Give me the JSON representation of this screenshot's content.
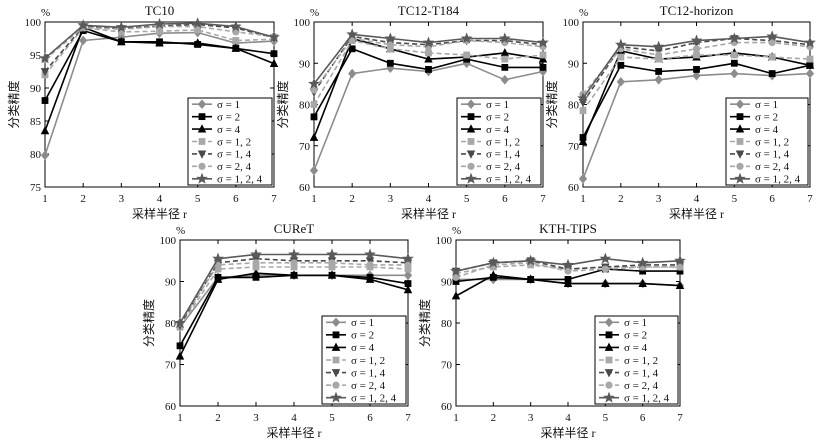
{
  "figure": {
    "x_axis_label": "采样半径 r",
    "y_axis_label": "分类精度",
    "y_unit": "%"
  },
  "legend": [
    "σ = 1",
    "σ = 2",
    "σ = 4",
    "σ = 1, 2",
    "σ = 1, 4",
    "σ = 2, 4",
    "σ = 1, 2, 4"
  ],
  "styles": [
    {
      "color": "#8c8c8c",
      "dash": "",
      "marker": "diamond"
    },
    {
      "color": "#000000",
      "dash": "",
      "marker": "square"
    },
    {
      "color": "#000000",
      "dash": "",
      "marker": "triangle-up"
    },
    {
      "color": "#a8a8a8",
      "dash": "5,3",
      "marker": "square"
    },
    {
      "color": "#4a4a4a",
      "dash": "5,3",
      "marker": "triangle-down"
    },
    {
      "color": "#a8a8a8",
      "dash": "5,3",
      "marker": "circle"
    },
    {
      "color": "#5a5a5a",
      "dash": "",
      "marker": "star"
    }
  ],
  "chart_data": [
    {
      "type": "line",
      "title": "TC10",
      "x": [
        1,
        2,
        3,
        4,
        5,
        6,
        7
      ],
      "ylim": [
        75,
        100
      ],
      "yticks": [
        75,
        80,
        85,
        90,
        95,
        100
      ],
      "xlabel": "采样半径 r",
      "ylabel": "分类精度",
      "grid": false,
      "legend_placement": "bottom-right",
      "series": [
        {
          "name": "σ = 1",
          "values": [
            79.8,
            97.2,
            97.7,
            98.3,
            98.4,
            96.8,
            97.1
          ]
        },
        {
          "name": "σ = 2",
          "values": [
            88.1,
            98.7,
            97.0,
            97.0,
            96.6,
            96.0,
            95.2
          ]
        },
        {
          "name": "σ = 4",
          "values": [
            83.5,
            99.2,
            97.0,
            96.8,
            96.8,
            96.0,
            93.7
          ]
        },
        {
          "name": "σ = 1, 2",
          "values": [
            92.0,
            99.1,
            98.5,
            98.6,
            98.8,
            97.2,
            97.4
          ]
        },
        {
          "name": "σ = 1, 4",
          "values": [
            92.5,
            99.3,
            99.0,
            99.4,
            99.6,
            99.1,
            97.6
          ]
        },
        {
          "name": "σ = 2, 4",
          "values": [
            94.3,
            99.2,
            98.9,
            99.3,
            99.3,
            98.5,
            97.8
          ]
        },
        {
          "name": "σ = 1, 2, 4",
          "values": [
            94.5,
            99.5,
            99.2,
            99.7,
            99.8,
            99.3,
            97.7
          ]
        }
      ]
    },
    {
      "type": "line",
      "title": "TC12-T184",
      "x": [
        1,
        2,
        3,
        4,
        5,
        6,
        7
      ],
      "ylim": [
        60,
        100
      ],
      "yticks": [
        60,
        70,
        80,
        90,
        100
      ],
      "xlabel": "采样半径 r",
      "ylabel": "分类精度",
      "grid": false,
      "legend_placement": "bottom-right",
      "series": [
        {
          "name": "σ = 1",
          "values": [
            64.0,
            87.5,
            88.8,
            88.0,
            90.0,
            86.0,
            88.0
          ]
        },
        {
          "name": "σ = 2",
          "values": [
            77.0,
            93.5,
            90.0,
            88.5,
            91.0,
            89.0,
            89.0
          ]
        },
        {
          "name": "σ = 4",
          "values": [
            72.0,
            96.0,
            93.5,
            91.0,
            91.5,
            92.5,
            91.0
          ]
        },
        {
          "name": "σ = 1, 2",
          "values": [
            80.0,
            95.5,
            93.5,
            92.5,
            92.0,
            91.0,
            92.0
          ]
        },
        {
          "name": "σ = 1, 4",
          "values": [
            83.0,
            96.5,
            95.0,
            94.5,
            95.5,
            95.5,
            94.5
          ]
        },
        {
          "name": "σ = 2, 4",
          "values": [
            83.5,
            96.0,
            94.5,
            94.0,
            95.5,
            95.0,
            94.0
          ]
        },
        {
          "name": "σ = 1, 2, 4",
          "values": [
            85.0,
            97.0,
            96.0,
            95.0,
            96.0,
            96.0,
            95.0
          ]
        }
      ]
    },
    {
      "type": "line",
      "title": "TC12-horizon",
      "x": [
        1,
        2,
        3,
        4,
        5,
        6,
        7
      ],
      "ylim": [
        60,
        100
      ],
      "yticks": [
        60,
        70,
        80,
        90,
        100
      ],
      "xlabel": "采样半径 r",
      "ylabel": "分类精度",
      "grid": false,
      "legend_placement": "bottom-right",
      "series": [
        {
          "name": "σ = 1",
          "values": [
            62.0,
            85.5,
            86.0,
            87.0,
            87.5,
            87.0,
            87.5
          ]
        },
        {
          "name": "σ = 2",
          "values": [
            72.0,
            89.5,
            88.0,
            88.5,
            90.0,
            87.5,
            89.5
          ]
        },
        {
          "name": "σ = 4",
          "values": [
            71.0,
            93.0,
            91.0,
            91.5,
            92.5,
            91.5,
            89.5
          ]
        },
        {
          "name": "σ = 1, 2",
          "values": [
            78.5,
            91.5,
            91.0,
            92.0,
            92.0,
            91.5,
            91.0
          ]
        },
        {
          "name": "σ = 1, 4",
          "values": [
            80.5,
            94.0,
            93.0,
            95.0,
            96.0,
            95.5,
            94.5
          ]
        },
        {
          "name": "σ = 2, 4",
          "values": [
            82.5,
            93.5,
            92.0,
            93.5,
            95.0,
            95.0,
            94.0
          ]
        },
        {
          "name": "σ = 1, 2, 4",
          "values": [
            81.5,
            94.5,
            94.0,
            95.5,
            96.0,
            96.5,
            95.0
          ]
        }
      ]
    },
    {
      "type": "line",
      "title": "CUReT",
      "x": [
        1,
        2,
        3,
        4,
        5,
        6,
        7
      ],
      "ylim": [
        60,
        100
      ],
      "yticks": [
        60,
        70,
        80,
        90,
        100
      ],
      "xlabel": "采样半径 r",
      "ylabel": "分类精度",
      "grid": false,
      "legend_placement": "bottom-right",
      "series": [
        {
          "name": "σ = 1",
          "values": [
            79.0,
            91.0,
            91.5,
            91.5,
            91.5,
            91.5,
            91.5
          ]
        },
        {
          "name": "σ = 2",
          "values": [
            74.5,
            91.0,
            91.0,
            91.5,
            91.5,
            91.0,
            89.5
          ]
        },
        {
          "name": "σ = 4",
          "values": [
            72.0,
            90.5,
            92.0,
            91.5,
            91.5,
            90.5,
            88.0
          ]
        },
        {
          "name": "σ = 1, 2",
          "values": [
            79.0,
            93.0,
            93.5,
            93.5,
            93.5,
            93.5,
            93.0
          ]
        },
        {
          "name": "σ = 1, 4",
          "values": [
            79.5,
            94.5,
            95.5,
            95.0,
            95.0,
            95.0,
            94.5
          ]
        },
        {
          "name": "σ = 2, 4",
          "values": [
            80.0,
            94.0,
            94.5,
            94.5,
            94.5,
            94.0,
            94.0
          ]
        },
        {
          "name": "σ = 1, 2, 4",
          "values": [
            80.0,
            95.5,
            96.5,
            96.5,
            96.5,
            96.5,
            95.5
          ]
        }
      ]
    },
    {
      "type": "line",
      "title": "KTH-TIPS",
      "x": [
        1,
        2,
        3,
        4,
        5,
        6,
        7
      ],
      "ylim": [
        60,
        100
      ],
      "yticks": [
        60,
        70,
        80,
        90,
        100
      ],
      "xlabel": "采样半径 r",
      "ylabel": "分类精度",
      "grid": false,
      "legend_placement": "bottom-right",
      "series": [
        {
          "name": "σ = 1",
          "values": [
            90.5,
            90.5,
            90.5,
            89.5,
            89.5,
            89.5,
            89.0
          ]
        },
        {
          "name": "σ = 2",
          "values": [
            90.0,
            91.0,
            90.5,
            90.5,
            93.0,
            92.5,
            92.5
          ]
        },
        {
          "name": "σ = 4",
          "values": [
            86.5,
            91.5,
            90.5,
            89.5,
            89.5,
            89.5,
            89.0
          ]
        },
        {
          "name": "σ = 1, 2",
          "values": [
            92.0,
            93.5,
            94.0,
            93.0,
            93.5,
            93.5,
            93.5
          ]
        },
        {
          "name": "σ = 1, 4",
          "values": [
            92.5,
            94.5,
            95.0,
            93.0,
            93.5,
            94.0,
            94.0
          ]
        },
        {
          "name": "σ = 2, 4",
          "values": [
            91.0,
            94.0,
            94.5,
            92.5,
            93.0,
            93.5,
            93.5
          ]
        },
        {
          "name": "σ = 1, 2, 4",
          "values": [
            92.5,
            94.5,
            95.0,
            94.0,
            95.5,
            94.5,
            95.0
          ]
        }
      ]
    }
  ]
}
